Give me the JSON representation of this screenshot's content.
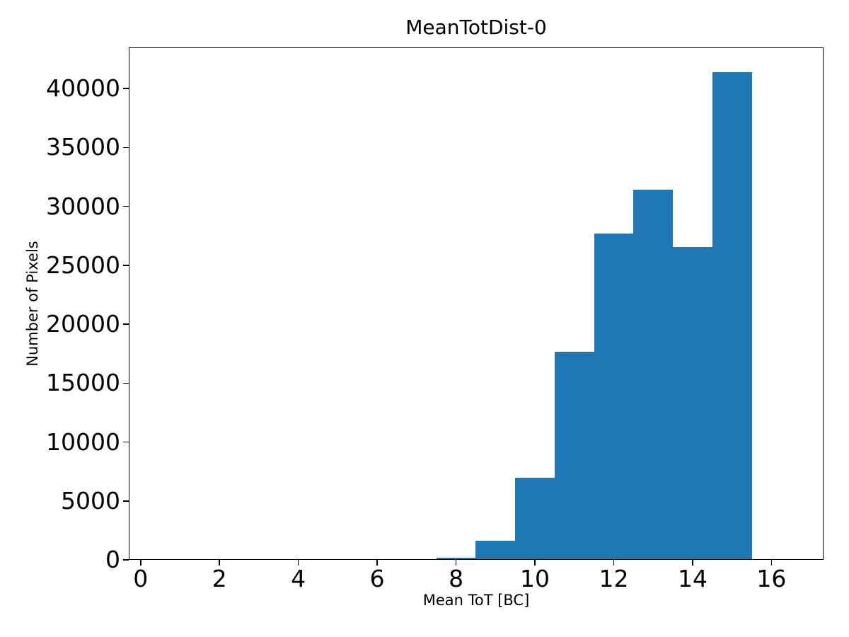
{
  "chart_data": {
    "type": "bar",
    "subtype": "histogram",
    "title": "MeanTotDist-0",
    "xlabel": "Mean ToT [BC]",
    "ylabel": "Number of Pixels",
    "bin_edges": [
      7.5,
      8.5,
      9.5,
      10.5,
      11.5,
      12.5,
      13.5,
      14.5,
      15.5
    ],
    "counts": [
      200,
      1600,
      6950,
      17650,
      27700,
      31450,
      26550,
      41400
    ],
    "x_ticks": [
      0,
      2,
      4,
      6,
      8,
      10,
      12,
      14,
      16
    ],
    "y_ticks": [
      0,
      5000,
      10000,
      15000,
      20000,
      25000,
      30000,
      35000,
      40000
    ],
    "xlim": [
      -0.3,
      17.32
    ],
    "ylim": [
      0,
      43500
    ],
    "grid": false,
    "legend_position": "none",
    "colors": {
      "bar": "#1f77b4",
      "axis": "#000000",
      "text": "#000000",
      "background": "#ffffff"
    }
  }
}
